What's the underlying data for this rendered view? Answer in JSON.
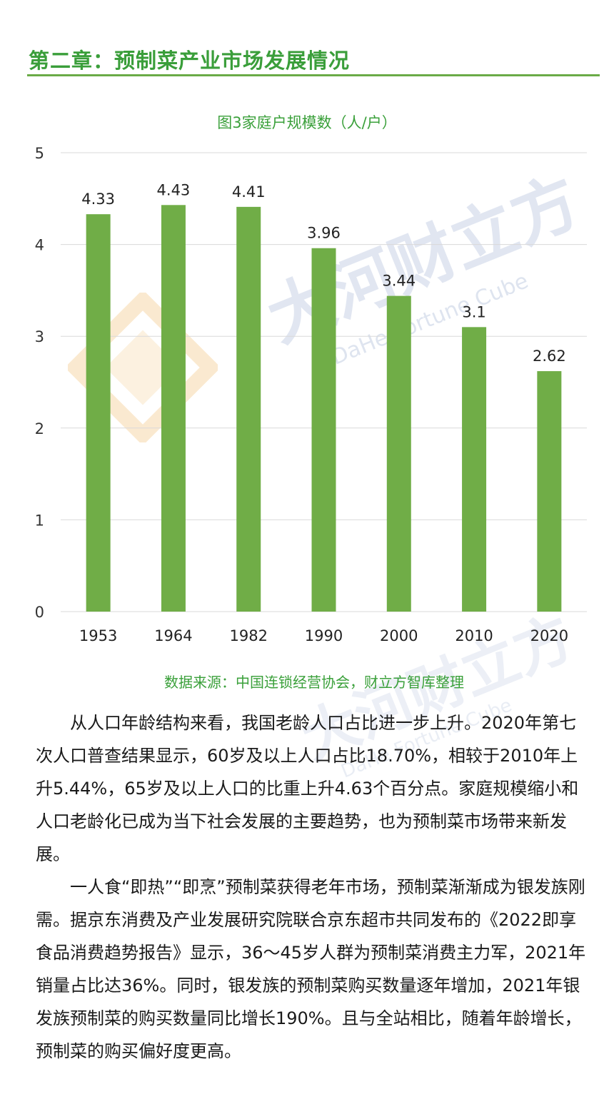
{
  "page": {
    "chapter_title": "第二章：预制菜产业市场发展情况"
  },
  "watermark": {
    "text": "大河财立方",
    "subtext": "DaHe Fortune Cube"
  },
  "figure": {
    "caption": "图3家庭户规模数（人/户）",
    "source": "数据来源：中国连锁经营协会，财立方智库整理"
  },
  "chart_data": {
    "type": "bar",
    "title": "图3家庭户规模数（人/户）",
    "categories": [
      "1953",
      "1964",
      "1982",
      "1990",
      "2000",
      "2010",
      "2020"
    ],
    "values": [
      4.33,
      4.43,
      4.41,
      3.96,
      3.44,
      3.1,
      2.62
    ],
    "value_labels": [
      "4.33",
      "4.43",
      "4.41",
      "3.96",
      "3.44",
      "3.1",
      "2.62"
    ],
    "y_ticks": [
      "0",
      "1",
      "2",
      "3",
      "4",
      "5"
    ],
    "ylim": [
      0,
      5
    ],
    "grid": true,
    "legend": "none",
    "bar_color": "#70ad47",
    "grid_color": "#d9d9d9"
  },
  "paragraphs": [
    "从人口年龄结构来看，我国老龄人口占比进一步上升。2020年第七次人口普查结果显示，60岁及以上人口占比18.70%，相较于2010年上升5.44%，65岁及以上人口的比重上升4.63个百分点。家庭规模缩小和人口老龄化已成为当下社会发展的主要趋势，也为预制菜市场带来新发展。",
    "一人食“即热”“即烹”预制菜获得老年市场，预制菜渐渐成为银发族刚需。据京东消费及产业发展研究院联合京东超市共同发布的《2022即享食品消费趋势报告》显示，36～45岁人群为预制菜消费主力军，2021年销量占比达36%。同时，银发族的预制菜购买数量逐年增加，2021年银发族预制菜的购买数量同比增长190%。且与全站相比，随着年龄增长，预制菜的购买偏好度更高。"
  ],
  "colors": {
    "accent_green": "#3aa03a",
    "rule_green": "#6aab47",
    "bar_green": "#70ad47"
  }
}
